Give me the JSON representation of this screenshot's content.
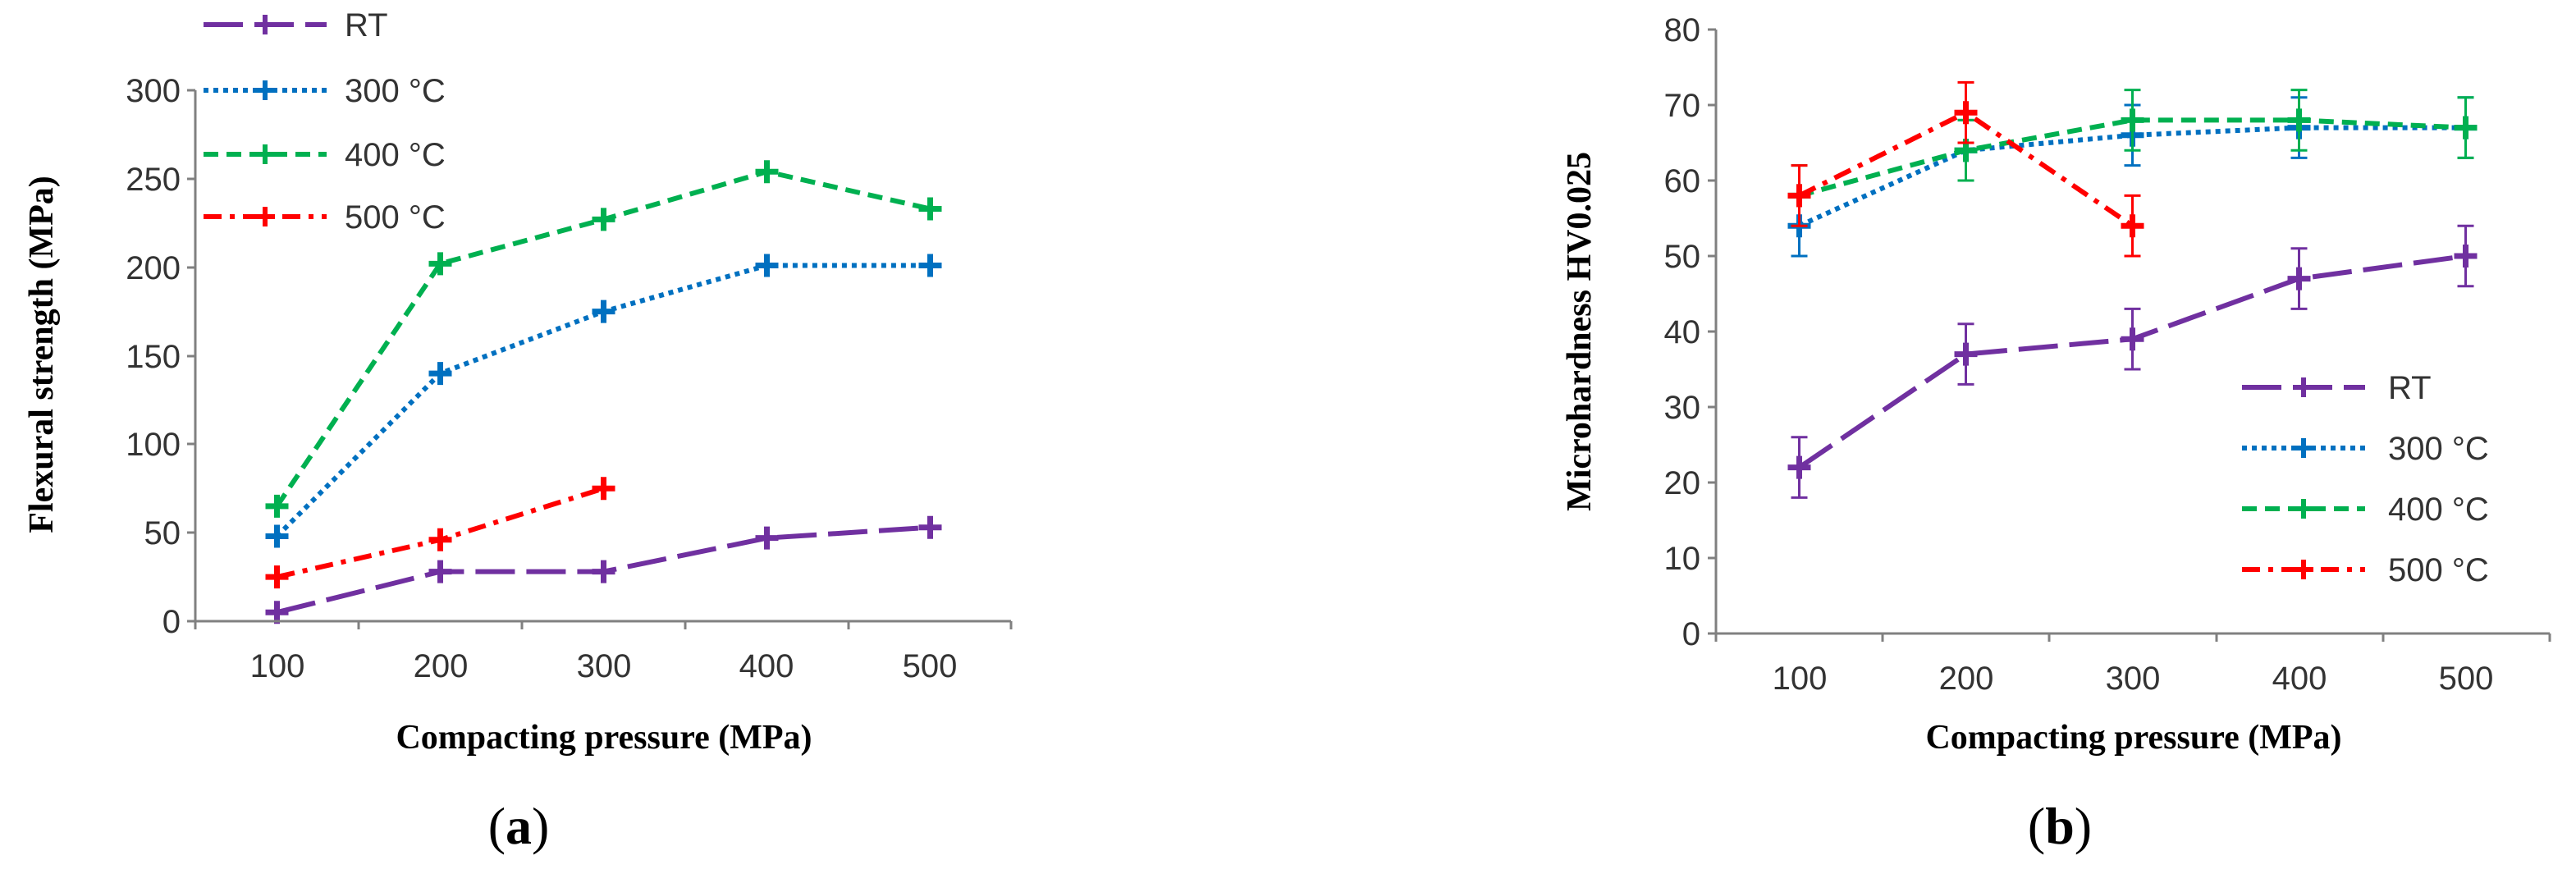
{
  "chart_data": [
    {
      "type": "line",
      "panel": "a",
      "panel_label": "a",
      "xlabel": "Compacting pressure (MPa)",
      "ylabel": "Flexural strength (MPa)",
      "x": [
        100,
        200,
        300,
        400,
        500
      ],
      "xticks": [
        "100",
        "200",
        "300",
        "400",
        "500"
      ],
      "ylim": [
        0,
        300
      ],
      "yticks": [
        0,
        50,
        100,
        150,
        200,
        250,
        300
      ],
      "legend_position": "top-left",
      "grid": false,
      "series": [
        {
          "name": "RT",
          "x": [
            100,
            200,
            300,
            400,
            500
          ],
          "values": [
            5,
            28,
            28,
            47,
            53
          ],
          "color": "#7030a0",
          "dash": "long-dash"
        },
        {
          "name": "300 °C",
          "x": [
            100,
            200,
            300,
            400,
            500
          ],
          "values": [
            48,
            140,
            175,
            201,
            201
          ],
          "color": "#0070c0",
          "dash": "dot"
        },
        {
          "name": "400 °C",
          "x": [
            100,
            200,
            300,
            400,
            500
          ],
          "values": [
            65,
            202,
            227,
            254,
            233
          ],
          "color": "#00b050",
          "dash": "dash"
        },
        {
          "name": "500 °C",
          "x": [
            100,
            200,
            300
          ],
          "values": [
            25,
            46,
            75
          ],
          "color": "#ff0000",
          "dash": "dash-dot"
        }
      ]
    },
    {
      "type": "line",
      "panel": "b",
      "panel_label": "b",
      "xlabel": "Compacting pressure (MPa)",
      "ylabel": "Microhardness HV0.025",
      "x": [
        100,
        200,
        300,
        400,
        500
      ],
      "xticks": [
        "100",
        "200",
        "300",
        "400",
        "500"
      ],
      "ylim": [
        0,
        80
      ],
      "yticks": [
        0,
        10,
        20,
        30,
        40,
        50,
        60,
        70,
        80
      ],
      "legend_position": "bottom-right",
      "grid": false,
      "series": [
        {
          "name": "RT",
          "x": [
            100,
            200,
            300,
            400,
            500
          ],
          "values": [
            22,
            37,
            39,
            47,
            50
          ],
          "errors": [
            4,
            4,
            4,
            4,
            4
          ],
          "color": "#7030a0",
          "dash": "long-dash"
        },
        {
          "name": "300 °C",
          "x": [
            100,
            200,
            300,
            400,
            500
          ],
          "values": [
            54,
            64,
            66,
            67,
            67
          ],
          "errors": [
            4,
            4,
            4,
            4,
            4
          ],
          "color": "#0070c0",
          "dash": "dot"
        },
        {
          "name": "400 °C",
          "x": [
            100,
            200,
            300,
            400,
            500
          ],
          "values": [
            58,
            64,
            68,
            68,
            67
          ],
          "errors": [
            4,
            4,
            4,
            4,
            4
          ],
          "color": "#00b050",
          "dash": "dash"
        },
        {
          "name": "500 °C",
          "x": [
            100,
            200,
            300
          ],
          "values": [
            58,
            69,
            54
          ],
          "errors": [
            4,
            4,
            4
          ],
          "color": "#ff0000",
          "dash": "dash-dot"
        }
      ]
    }
  ]
}
